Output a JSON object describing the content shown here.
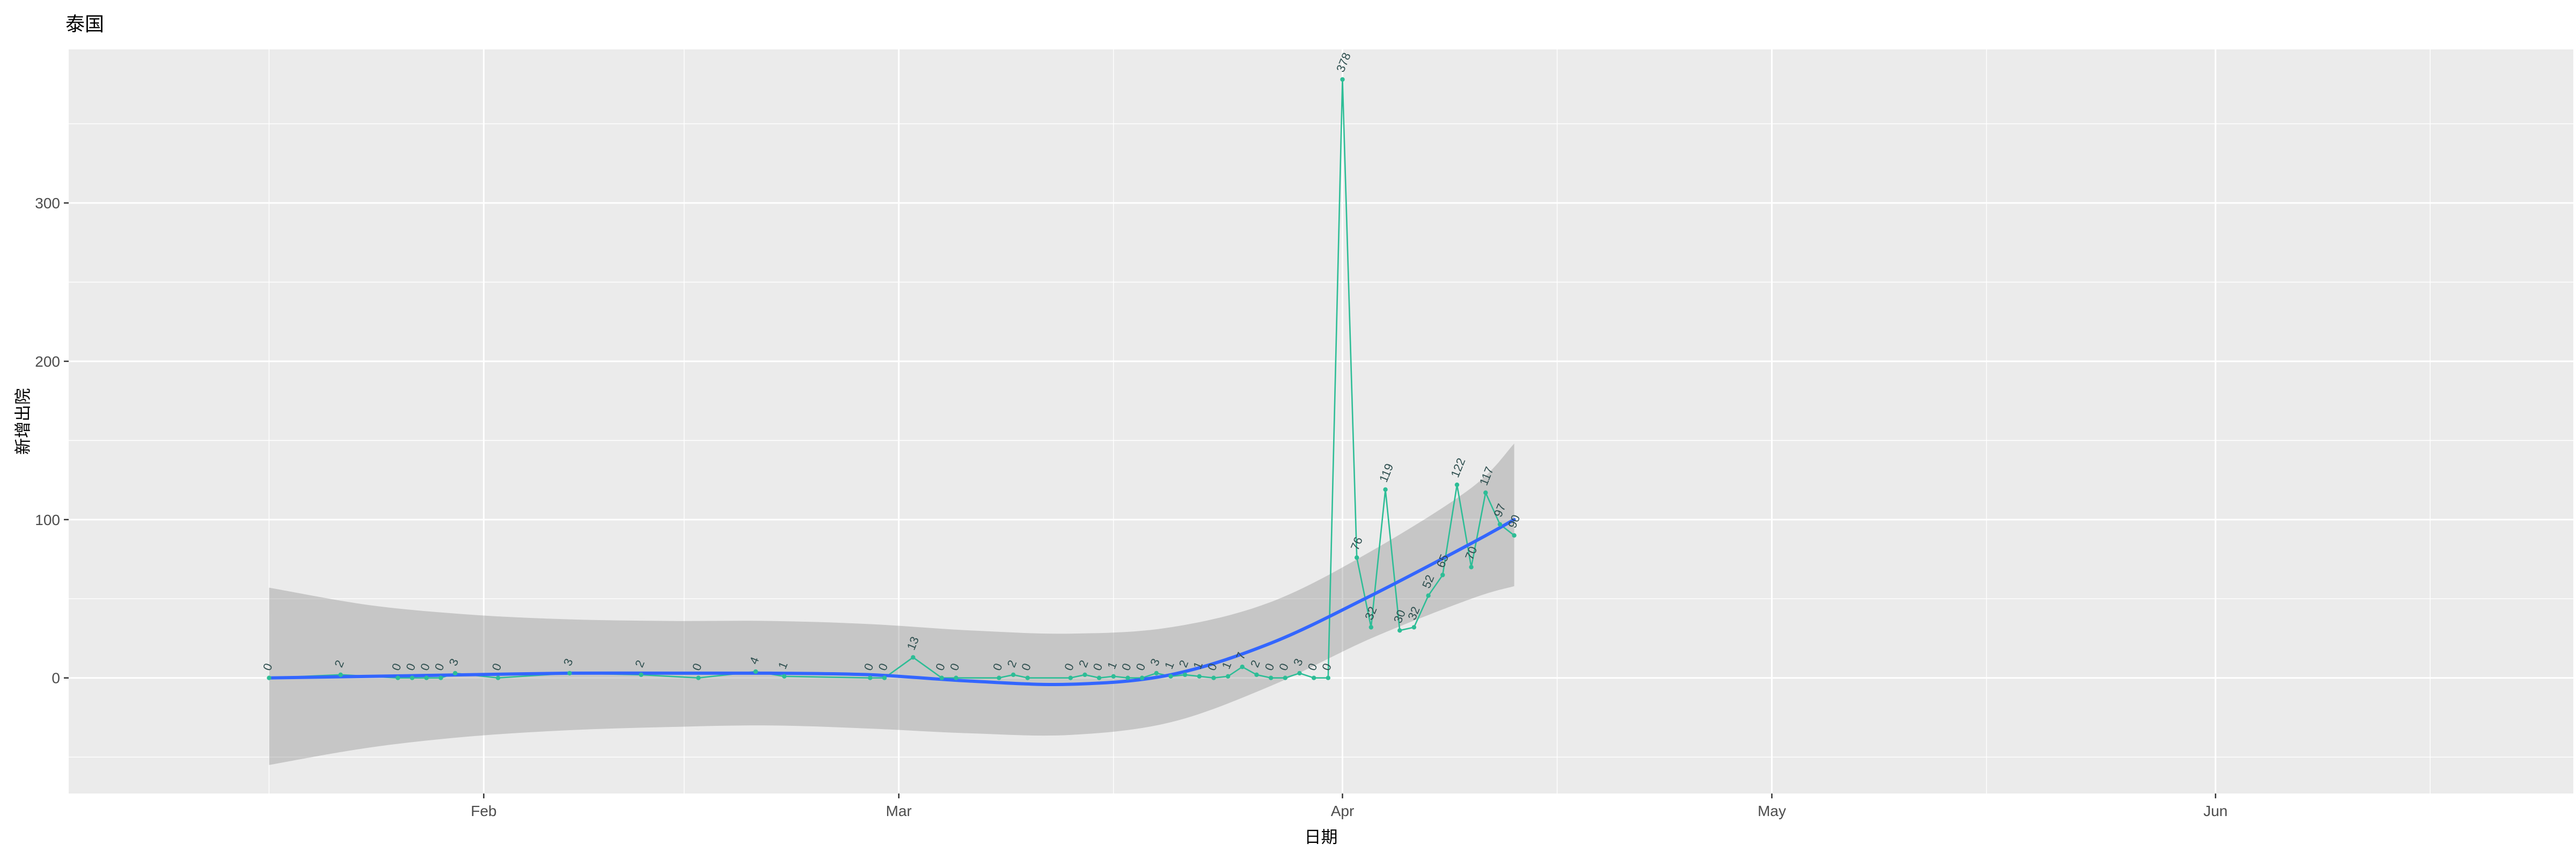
{
  "page": {
    "title": "泰国"
  },
  "chart_data": {
    "type": "line",
    "title": "泰国",
    "xlabel": "日期",
    "ylabel": "新增出院",
    "legend": "none",
    "grid": "on",
    "x_domain": [
      "2020-01-03",
      "2020-06-26"
    ],
    "y_domain": [
      -73,
      397
    ],
    "x_ticks": [
      {
        "date": "2020-02-01",
        "label": "Feb"
      },
      {
        "date": "2020-03-01",
        "label": "Mar"
      },
      {
        "date": "2020-04-01",
        "label": "Apr"
      },
      {
        "date": "2020-05-01",
        "label": "May"
      },
      {
        "date": "2020-06-01",
        "label": "Jun"
      }
    ],
    "x_minor_ticks": [
      "2020-01-17",
      "2020-02-15",
      "2020-03-16",
      "2020-04-16",
      "2020-05-16",
      "2020-06-16"
    ],
    "y_ticks": [
      0,
      100,
      200,
      300
    ],
    "y_minor_ticks": [
      -50,
      50,
      150,
      250,
      350
    ],
    "series": {
      "name": "daily-new-discharged",
      "dates": [
        "2020-01-17",
        "2020-01-22",
        "2020-01-26",
        "2020-01-27",
        "2020-01-28",
        "2020-01-29",
        "2020-01-30",
        "2020-02-02",
        "2020-02-07",
        "2020-02-12",
        "2020-02-16",
        "2020-02-20",
        "2020-02-22",
        "2020-02-28",
        "2020-02-29",
        "2020-03-02",
        "2020-03-04",
        "2020-03-05",
        "2020-03-08",
        "2020-03-09",
        "2020-03-10",
        "2020-03-13",
        "2020-03-14",
        "2020-03-15",
        "2020-03-16",
        "2020-03-17",
        "2020-03-18",
        "2020-03-19",
        "2020-03-20",
        "2020-03-21",
        "2020-03-22",
        "2020-03-23",
        "2020-03-24",
        "2020-03-25",
        "2020-03-26",
        "2020-03-27",
        "2020-03-28",
        "2020-03-29",
        "2020-03-30",
        "2020-03-31",
        "2020-04-01",
        "2020-04-02",
        "2020-04-03",
        "2020-04-04",
        "2020-04-05",
        "2020-04-06",
        "2020-04-07",
        "2020-04-08",
        "2020-04-09",
        "2020-04-10",
        "2020-04-11",
        "2020-04-12",
        "2020-04-13"
      ],
      "values": [
        0,
        2,
        0,
        0,
        0,
        0,
        3,
        0,
        3,
        2,
        0,
        4,
        1,
        0,
        0,
        13,
        0,
        0,
        0,
        2,
        0,
        0,
        2,
        0,
        1,
        0,
        0,
        3,
        1,
        2,
        1,
        0,
        1,
        7,
        2,
        0,
        0,
        3,
        0,
        0,
        378,
        76,
        32,
        119,
        30,
        32,
        52,
        65,
        122,
        70,
        117,
        97,
        90
      ]
    },
    "smooth": {
      "name": "loess-trend",
      "dates": [
        "2020-01-17",
        "2020-01-24",
        "2020-01-31",
        "2020-02-07",
        "2020-02-14",
        "2020-02-21",
        "2020-02-28",
        "2020-03-06",
        "2020-03-13",
        "2020-03-20",
        "2020-03-27",
        "2020-04-03",
        "2020-04-10",
        "2020-04-13"
      ],
      "fit": [
        0,
        1,
        2,
        3,
        3,
        3,
        2,
        -2,
        -4,
        2,
        22,
        52,
        85,
        100
      ],
      "lower": [
        -55,
        -44,
        -37,
        -33,
        -31,
        -30,
        -32,
        -35,
        -36,
        -28,
        -5,
        25,
        50,
        58
      ],
      "upper": [
        57,
        46,
        40,
        37,
        36,
        36,
        34,
        30,
        28,
        32,
        48,
        80,
        120,
        148
      ]
    },
    "colors": {
      "series": "#2dbd96",
      "point": "#2dbd96",
      "label": "#2f4f4f",
      "smooth": "#3366FF",
      "ribbon": "rgba(128,128,128,0.35)",
      "panel": "#EBEBEB",
      "grid_major": "#FFFFFF",
      "grid_minor": "#F5F5F5",
      "axis_text": "#4D4D4D",
      "tick_mark": "#333333"
    }
  }
}
